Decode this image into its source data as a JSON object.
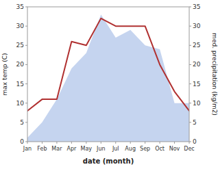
{
  "chart_data": {
    "type": "line",
    "categories": [
      "Jan",
      "Feb",
      "Mar",
      "Apr",
      "May",
      "Jun",
      "Jul",
      "Aug",
      "Sep",
      "Oct",
      "Nov",
      "Dec"
    ],
    "series": [
      {
        "type": "area",
        "axis": "y2",
        "color": "#c5d4ef",
        "values": [
          1,
          5,
          11,
          19,
          23,
          33,
          27,
          29,
          25,
          24,
          10,
          10
        ]
      },
      {
        "type": "line",
        "color": "#b03030",
        "values": [
          8,
          11,
          11,
          26,
          25,
          32,
          30,
          30,
          30,
          20,
          13,
          8
        ]
      }
    ],
    "xlabel": "date (month)",
    "ylabel": "max temp (C)",
    "y2label": "med. precipitation (kg/m2)",
    "ylim": [
      0,
      35
    ],
    "yticks": [
      0,
      5,
      10,
      15,
      20,
      25,
      30,
      35
    ],
    "y2lim": [
      0,
      35
    ],
    "y2ticks": [
      0,
      5,
      10,
      15,
      20,
      25,
      30,
      35
    ],
    "grid": false
  }
}
